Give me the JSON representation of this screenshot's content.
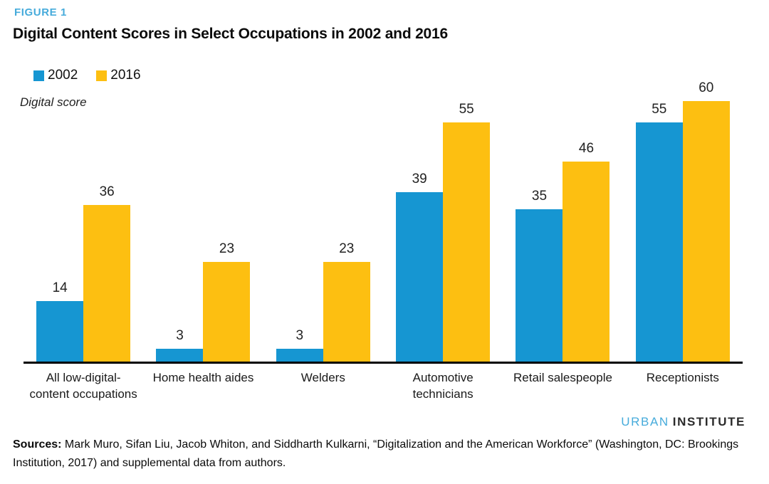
{
  "figure": {
    "label": "FIGURE 1"
  },
  "chart_data": {
    "type": "bar",
    "title": "Digital Content Scores in Select Occupations in 2002 and 2016",
    "ylabel": "Digital score",
    "xlabel": "",
    "ylim": [
      0,
      62
    ],
    "grid": false,
    "legend_position": "top-left",
    "value_labels": true,
    "categories": [
      "All low-digital-\ncontent occupations",
      "Home health aides",
      "Welders",
      "Automotive\ntechnicians",
      "Retail salespeople",
      "Receptionists"
    ],
    "series": [
      {
        "name": "2002",
        "color": "#1696d2",
        "values": [
          14,
          3,
          3,
          39,
          35,
          55
        ]
      },
      {
        "name": "2016",
        "color": "#fdbf11",
        "values": [
          36,
          23,
          23,
          55,
          46,
          60
        ]
      }
    ]
  },
  "footer": {
    "logo_urban": "URBAN",
    "logo_institute": "INSTITUTE",
    "sources_label": "Sources:",
    "sources_text": "Mark Muro, Sifan Liu, Jacob Whiton, and Siddharth Kulkarni, “Digitalization and the American Workforce” (Washington, DC: Brookings Institution, 2017) and supplemental data from authors."
  },
  "colors": {
    "accent_blue": "#1696d2",
    "accent_yellow": "#fdbf11",
    "figure_label_blue": "#46abdb",
    "axis_black": "#000000"
  }
}
